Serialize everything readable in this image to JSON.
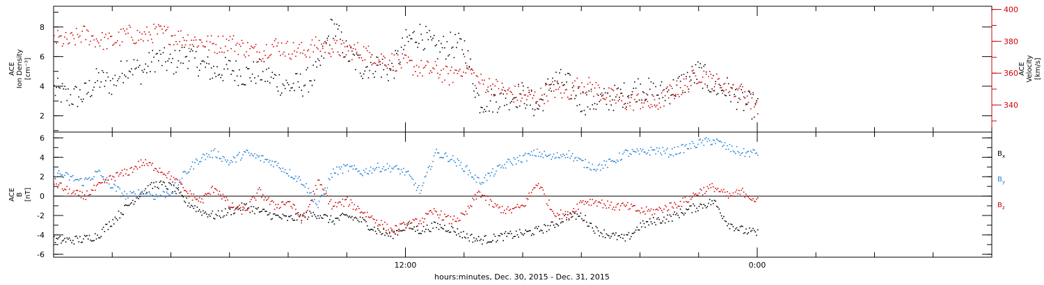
{
  "chart_data": [
    {
      "type": "scatter",
      "panel": "top",
      "ylabel_left": [
        "ACE",
        "Ion Density",
        "[cm⁻³]"
      ],
      "ylabel_right": [
        "ACE",
        "Velocity",
        "[km/s]"
      ],
      "left_axis": {
        "range": [
          0.9,
          9.4
        ],
        "ticks": [
          2,
          4,
          6,
          8
        ],
        "tick_labels": [
          "2",
          "4",
          "6",
          "8"
        ]
      },
      "right_axis": {
        "range": [
          323,
          402
        ],
        "ticks": [
          340,
          360,
          380,
          400
        ],
        "tick_labels": [
          "340",
          "360",
          "380",
          "400"
        ]
      },
      "x_range_hours": [
        0,
        32
      ],
      "series": [
        {
          "color": "#000000",
          "axis": "left",
          "x": [
            0,
            0.5,
            1,
            1.5,
            2,
            2.5,
            3,
            3.5,
            4,
            4.5,
            5,
            5.5,
            6,
            6.5,
            7,
            7.5,
            8,
            8.5,
            9,
            9.5,
            10,
            10.5,
            11,
            11.5,
            12,
            12.5,
            13,
            13.5,
            14,
            14.5,
            15,
            15.5,
            16,
            16.5,
            17,
            17.5,
            18,
            18.5,
            19,
            19.5,
            20,
            20.5,
            21,
            21.5,
            22,
            22.5,
            23,
            23.5,
            24
          ],
          "y": [
            3.8,
            3.3,
            3.4,
            4.5,
            4.2,
            5.5,
            5.0,
            6.0,
            5.5,
            6.2,
            5.5,
            5.0,
            5.2,
            4.8,
            5.0,
            4.5,
            4.0,
            4.2,
            5.0,
            8.2,
            6.2,
            5.3,
            5.5,
            5.0,
            7.0,
            7.6,
            6.5,
            6.8,
            6.7,
            3.0,
            3.1,
            3.3,
            3.5,
            2.5,
            4.5,
            4.2,
            3.0,
            3.0,
            3.2,
            3.5,
            4.0,
            3.5,
            3.7,
            4.3,
            5.0,
            4.0,
            3.8,
            3.0,
            2.5
          ]
        },
        {
          "color": "#d00000",
          "axis": "right",
          "x": [
            0,
            0.5,
            1,
            1.5,
            2,
            2.5,
            3,
            3.5,
            4,
            4.5,
            5,
            5.5,
            6,
            6.5,
            7,
            7.5,
            8,
            8.5,
            9,
            9.5,
            10,
            10.5,
            11,
            11.5,
            12,
            12.5,
            13,
            13.5,
            14,
            14.5,
            15,
            15.5,
            16,
            16.5,
            17,
            17.5,
            18,
            18.5,
            19,
            19.5,
            20,
            20.5,
            21,
            21.5,
            22,
            22.5,
            23,
            23.5,
            24
          ],
          "y": [
            382,
            380,
            385,
            381,
            380,
            385,
            383,
            386,
            384,
            382,
            380,
            378,
            380,
            376,
            373,
            378,
            375,
            374,
            378,
            376,
            375,
            374,
            370,
            368,
            366,
            363,
            362,
            358,
            365,
            355,
            352,
            348,
            346,
            345,
            350,
            348,
            354,
            350,
            345,
            342,
            343,
            340,
            348,
            352,
            360,
            355,
            352,
            348,
            340
          ]
        }
      ]
    },
    {
      "type": "scatter",
      "panel": "bottom",
      "ylabel_left": [
        "ACE",
        "B",
        "[nT]"
      ],
      "left_axis": {
        "range": [
          -6.3,
          6.6
        ],
        "ticks": [
          -6,
          -4,
          -2,
          0,
          2,
          4,
          6
        ],
        "tick_labels": [
          "-6",
          "-4",
          "-2",
          "0",
          "2",
          "4",
          "6"
        ]
      },
      "x_range_hours": [
        0,
        32
      ],
      "zero_line": true,
      "legend": [
        {
          "label": "B",
          "sub": "x",
          "color": "#000000"
        },
        {
          "label": "B",
          "sub": "y",
          "color": "#1f7fd6"
        },
        {
          "label": "B",
          "sub": "z",
          "color": "#d00000"
        }
      ],
      "series": [
        {
          "name": "Bx",
          "color": "#000000",
          "x": [
            0,
            0.5,
            1,
            1.5,
            2,
            2.5,
            3,
            3.5,
            4,
            4.5,
            5,
            5.5,
            6,
            6.5,
            7,
            7.5,
            8,
            8.5,
            9,
            9.5,
            10,
            10.5,
            11,
            11.5,
            12,
            12.5,
            13,
            13.5,
            14,
            14.5,
            15,
            15.5,
            16,
            16.5,
            17,
            17.5,
            18,
            18.5,
            19,
            19.5,
            20,
            20.5,
            21,
            21.5,
            22,
            22.5,
            23,
            23.5,
            24
          ],
          "y": [
            -4.5,
            -4.5,
            -4.4,
            -4.0,
            -2.5,
            -1.0,
            0.5,
            1.3,
            1.0,
            -0.5,
            -1.5,
            -2.0,
            -1.5,
            -1.0,
            -1.5,
            -2.0,
            -2.3,
            -2.0,
            -1.8,
            -2.5,
            -2.0,
            -2.5,
            -3.5,
            -4.0,
            -3.0,
            -3.5,
            -3.0,
            -3.3,
            -4.0,
            -4.5,
            -4.3,
            -4.0,
            -3.8,
            -3.5,
            -3.0,
            -2.0,
            -2.0,
            -3.5,
            -4.0,
            -4.4,
            -3.0,
            -2.5,
            -2.2,
            -1.5,
            -1.0,
            -0.5,
            -2.8,
            -3.5,
            -3.8
          ]
        },
        {
          "name": "By",
          "color": "#1f7fd6",
          "x": [
            0,
            0.5,
            1,
            1.5,
            2,
            2.5,
            3,
            3.5,
            4,
            4.5,
            5,
            5.5,
            6,
            6.5,
            7,
            7.5,
            8,
            8.5,
            9,
            9.5,
            10,
            10.5,
            11,
            11.5,
            12,
            12.5,
            13,
            13.5,
            14,
            14.5,
            15,
            15.5,
            16,
            16.5,
            17,
            17.5,
            18,
            18.5,
            19,
            19.5,
            20,
            20.5,
            21,
            21.5,
            22,
            22.5,
            23,
            23.5,
            24
          ],
          "y": [
            2.5,
            2.0,
            1.5,
            2.5,
            1.0,
            0.0,
            0.5,
            0.0,
            0.5,
            2.5,
            4.0,
            4.5,
            3.5,
            4.5,
            4.0,
            3.5,
            2.5,
            1.5,
            -1.0,
            2.5,
            3.0,
            2.5,
            3.0,
            3.0,
            2.5,
            0.5,
            4.5,
            4.0,
            3.0,
            1.5,
            2.5,
            3.5,
            4.0,
            4.5,
            4.0,
            4.5,
            3.5,
            3.0,
            3.5,
            4.5,
            4.5,
            4.8,
            4.5,
            5.0,
            5.5,
            5.8,
            5.0,
            4.5,
            4.5
          ]
        },
        {
          "name": "Bz",
          "color": "#d00000",
          "x": [
            0,
            0.5,
            1,
            1.5,
            2,
            2.5,
            3,
            3.5,
            4,
            4.5,
            5,
            5.5,
            6,
            6.5,
            7,
            7.5,
            8,
            8.5,
            9,
            9.5,
            10,
            10.5,
            11,
            11.5,
            12,
            12.5,
            13,
            13.5,
            14,
            14.5,
            15,
            15.5,
            16,
            16.5,
            17,
            17.5,
            18,
            18.5,
            19,
            19.5,
            20,
            20.5,
            21,
            21.5,
            22,
            22.5,
            23,
            23.5,
            24
          ],
          "y": [
            1.5,
            0.5,
            0.0,
            1.0,
            2.0,
            2.5,
            3.5,
            3.0,
            2.0,
            0.5,
            -0.5,
            1.0,
            -1.0,
            -1.5,
            0.5,
            -1.0,
            -0.5,
            -2.5,
            1.5,
            -1.0,
            -0.5,
            -1.5,
            -2.5,
            -3.5,
            -3.0,
            -2.5,
            -1.5,
            -2.5,
            -2.0,
            0.5,
            -1.0,
            -1.5,
            -1.0,
            1.5,
            -1.5,
            -2.0,
            -0.5,
            -0.5,
            -1.0,
            -1.0,
            -1.5,
            -1.5,
            -1.0,
            -0.5,
            0.5,
            1.0,
            0.0,
            0.5,
            -0.5
          ]
        }
      ]
    }
  ],
  "x_axis": {
    "tick_labels": [
      {
        "label": "12:00",
        "hour": 12
      },
      {
        "label": "0:00",
        "hour": 24
      }
    ],
    "xlabel": "hours:minutes, Dec. 30, 2015 - Dec. 31, 2015"
  }
}
